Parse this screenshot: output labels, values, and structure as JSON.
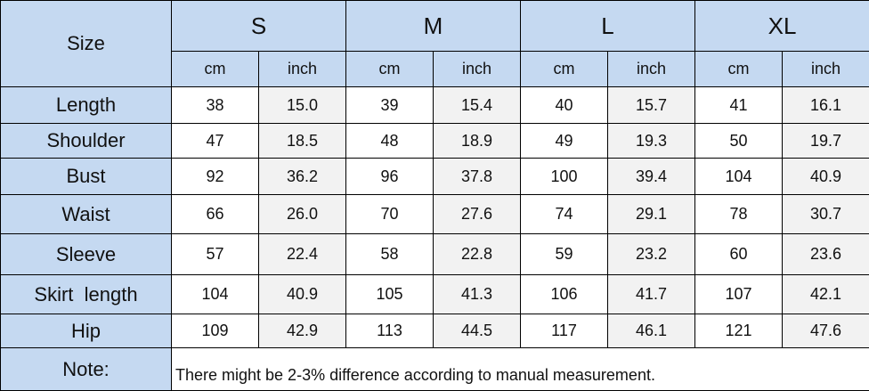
{
  "table": {
    "corner": "Size",
    "sizes": [
      "S",
      "M",
      "L",
      "XL"
    ],
    "units": [
      "cm",
      "inch",
      "cm",
      "inch",
      "cm",
      "inch",
      "cm",
      "inch"
    ],
    "rows": [
      {
        "label": "Length",
        "values": [
          "38",
          "15.0",
          "39",
          "15.4",
          "40",
          "15.7",
          "41",
          "16.1"
        ]
      },
      {
        "label": "Shoulder",
        "values": [
          "47",
          "18.5",
          "48",
          "18.9",
          "49",
          "19.3",
          "50",
          "19.7"
        ]
      },
      {
        "label": "Bust",
        "values": [
          "92",
          "36.2",
          "96",
          "37.8",
          "100",
          "39.4",
          "104",
          "40.9"
        ]
      },
      {
        "label": "Waist",
        "values": [
          "66",
          "26.0",
          "70",
          "27.6",
          "74",
          "29.1",
          "78",
          "30.7"
        ]
      },
      {
        "label": "Sleeve",
        "values": [
          "57",
          "22.4",
          "58",
          "22.8",
          "59",
          "23.2",
          "60",
          "23.6"
        ]
      },
      {
        "label": "Skirt  length",
        "values": [
          "104",
          "40.9",
          "105",
          "41.3",
          "106",
          "41.7",
          "107",
          "42.1"
        ]
      },
      {
        "label": "Hip",
        "values": [
          "109",
          "42.9",
          "113",
          "44.5",
          "117",
          "46.1",
          "121",
          "47.6"
        ]
      }
    ],
    "note": {
      "label": "Note:",
      "text": "There might be 2-3% difference according to manual measurement."
    }
  }
}
